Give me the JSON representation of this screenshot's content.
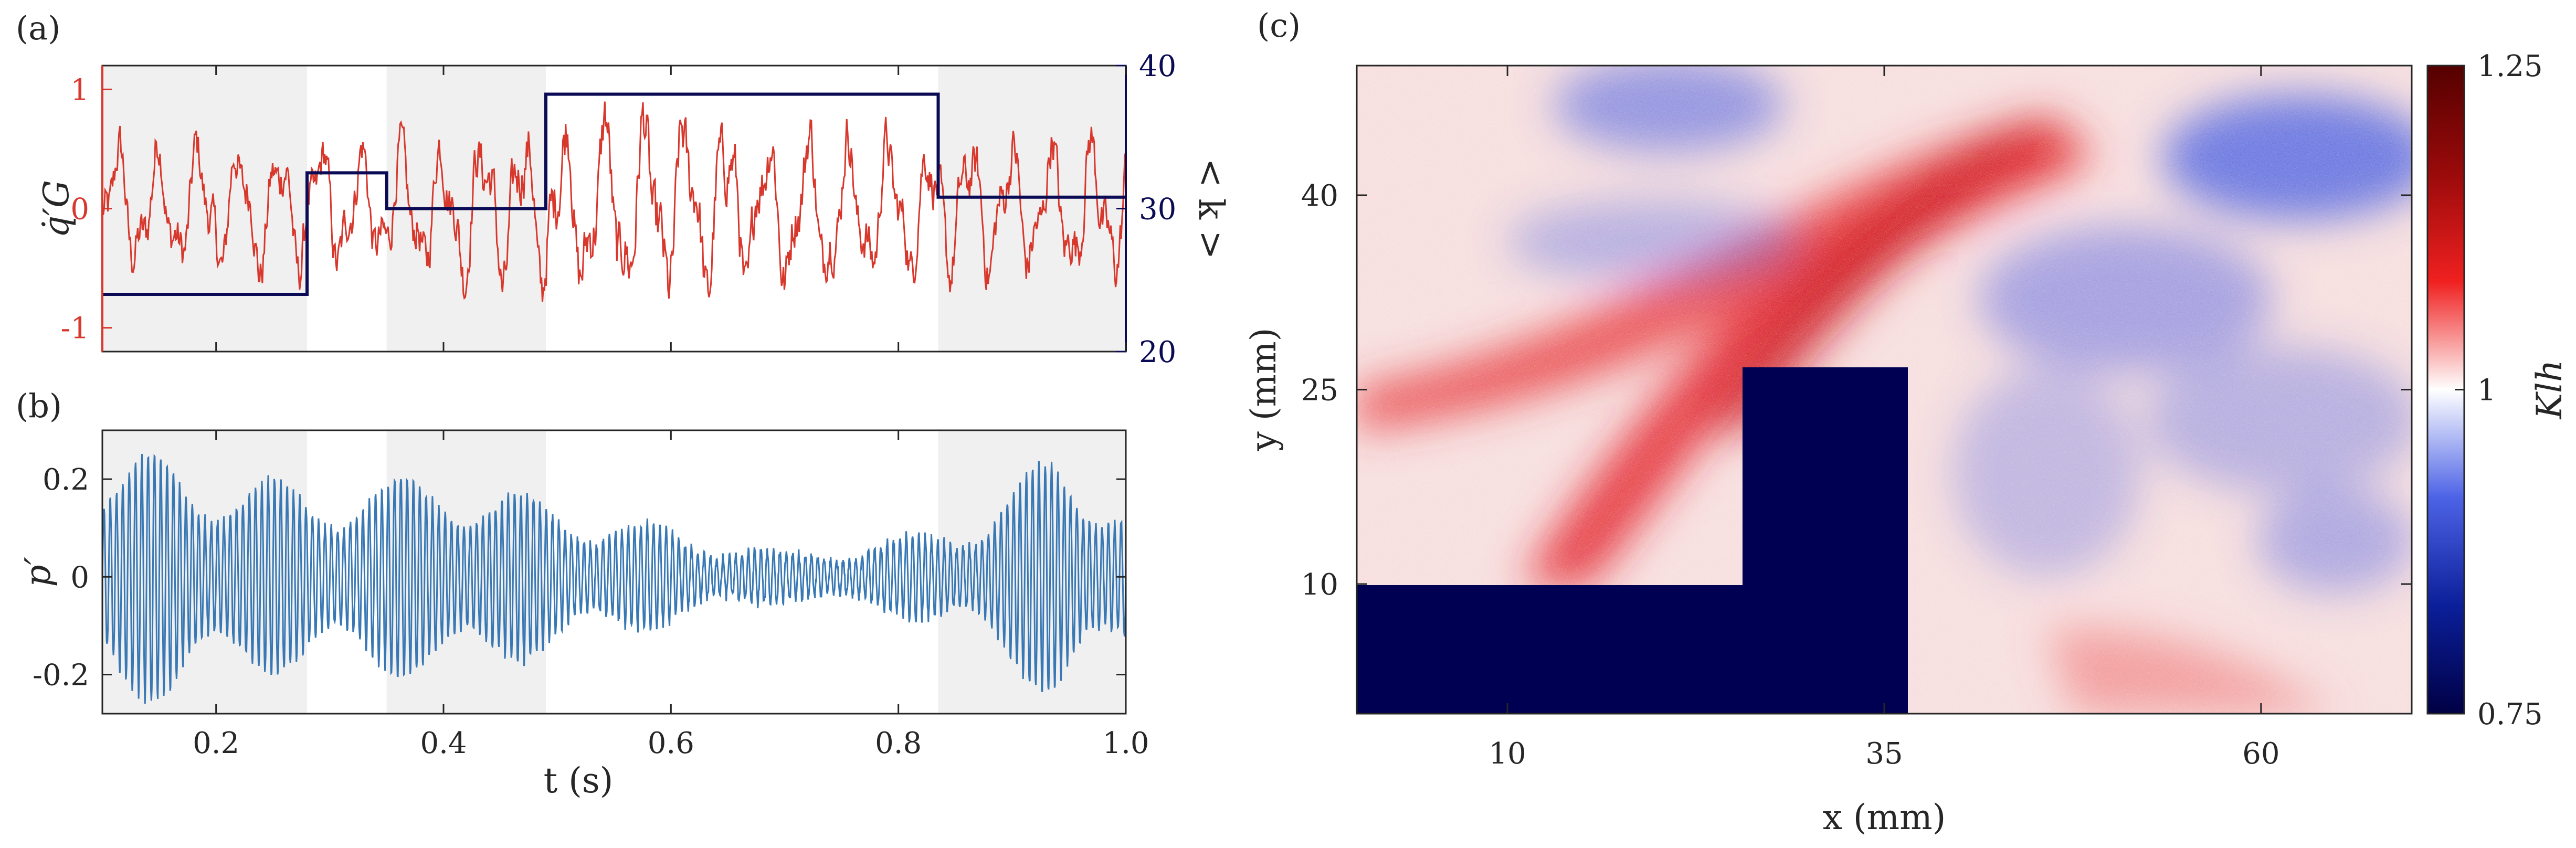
{
  "panels": {
    "a": "(a)",
    "b": "(b)",
    "c": "(c)"
  },
  "chart_data": [
    {
      "id": "a",
      "type": "line",
      "x_range": [
        0.1,
        1.0
      ],
      "ylim_left": [
        -1.2,
        1.2
      ],
      "yticks_left": [
        "-1",
        "0",
        "1"
      ],
      "ylabel_left": "q̇′G",
      "ylim_right": [
        20,
        40
      ],
      "yticks_right": [
        "20",
        "30",
        "40"
      ],
      "ylabel_right": "< k >",
      "shaded_intervals": [
        [
          0.1,
          0.28
        ],
        [
          0.35,
          0.49
        ],
        [
          0.835,
          1.0
        ]
      ],
      "colors": {
        "left_axis": "#d8372c",
        "signal": "#d8372c",
        "step": "#0b0b55",
        "right_axis": "#0b0b55",
        "shade": "#f0f0f0"
      },
      "series": [
        {
          "type": "signal",
          "amplitude_profile": {
            "x": [
              0.1,
              0.28,
              0.35,
              0.49,
              0.6,
              0.83,
              1.0
            ],
            "amp": [
              0.6,
              0.6,
              0.55,
              0.8,
              0.85,
              0.6,
              0.65
            ]
          }
        },
        {
          "type": "step",
          "x": [
            0.1,
            0.28,
            0.28,
            0.35,
            0.35,
            0.49,
            0.49,
            0.835,
            0.835,
            1.0
          ],
          "y": [
            24,
            24,
            32.5,
            32.5,
            30,
            30,
            38,
            38,
            30.8,
            30.8
          ]
        }
      ]
    },
    {
      "id": "b",
      "type": "line",
      "x_range": [
        0.1,
        1.0
      ],
      "xticks": [
        "0.2",
        "0.4",
        "0.6",
        "0.8",
        "1.0"
      ],
      "xlabel": "t (s)",
      "ylim": [
        -0.28,
        0.3
      ],
      "yticks": [
        "-0.2",
        "0",
        "0.2"
      ],
      "ylabel": "p′",
      "shaded_intervals": [
        [
          0.1,
          0.28
        ],
        [
          0.35,
          0.49
        ],
        [
          0.835,
          1.0
        ]
      ],
      "colors": {
        "signal": "#3878b4",
        "shade": "#f0f0f0"
      },
      "series": [
        {
          "type": "oscillation",
          "amplitude_profile": {
            "x": [
              0.1,
              0.16,
              0.22,
              0.28,
              0.35,
              0.4,
              0.49,
              0.6,
              0.7,
              0.8,
              0.87,
              0.94,
              1.0
            ],
            "amp": [
              0.22,
              0.27,
              0.2,
              0.2,
              0.2,
              0.22,
              0.16,
              0.1,
              0.05,
              0.08,
              0.13,
              0.27,
              0.16
            ]
          }
        }
      ]
    },
    {
      "id": "c",
      "type": "heatmap",
      "xlim": [
        0,
        70
      ],
      "ylim": [
        0,
        50
      ],
      "xticks": [
        "10",
        "35",
        "60"
      ],
      "yticks": [
        "10",
        "25",
        "40"
      ],
      "xlabel": "x (mm)",
      "ylabel": "y (mm)",
      "colorbar": {
        "range": [
          0.75,
          1.25
        ],
        "ticks": [
          "0.75",
          "1",
          "1.25"
        ],
        "label": "Klh",
        "stops": [
          "#000044",
          "#0b1f9a",
          "#4d63e6",
          "#ffffff",
          "#f02020",
          "#9a0a0a",
          "#550000"
        ]
      },
      "mask_color": "#000052"
    }
  ]
}
